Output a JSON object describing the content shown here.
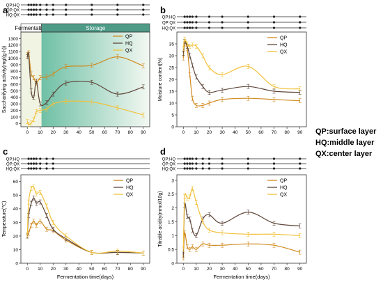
{
  "figure_note": {
    "lines": [
      "QP:surface layer",
      "HQ:middle layer",
      "QX:center layer"
    ]
  },
  "chart_data": [
    {
      "panel": "a",
      "type": "line",
      "sig_rows": [
        "QP:HQ",
        "QP:QX",
        "HQ:QX"
      ],
      "sig_marks_x": [
        [
          1,
          3,
          5,
          7,
          10,
          15,
          20,
          30,
          50,
          70,
          90
        ],
        [
          1,
          3,
          5,
          7,
          10,
          15,
          20,
          30,
          50,
          70,
          90
        ],
        [
          1,
          3,
          5,
          7,
          10,
          15,
          20,
          30,
          50,
          70,
          90
        ]
      ],
      "phases": [
        {
          "label": "Fermentation",
          "x0": -5,
          "x1": 11,
          "color": "#f1f4e2"
        },
        {
          "label": "Storage",
          "x0": 11,
          "x1": 95,
          "color": "#6fc0a6"
        }
      ],
      "ylabel": "Saccharifying activity(mg/(g·h))",
      "xlabel": "",
      "xlim": [
        -5,
        95
      ],
      "ylim": [
        -50,
        1400
      ],
      "xticks": [
        0,
        10,
        20,
        30,
        40,
        50,
        60,
        70,
        80,
        90
      ],
      "yticks": [
        0,
        100,
        200,
        300,
        400,
        500,
        600,
        700,
        800,
        900,
        1000,
        1100,
        1200,
        1300
      ],
      "legend_position": "top-right",
      "series": [
        {
          "name": "QP",
          "color": "#d08a1f",
          "x": [
            0,
            1,
            3,
            5,
            7,
            10,
            15,
            20,
            30,
            50,
            70,
            90
          ],
          "y": [
            1050,
            1080,
            760,
            700,
            620,
            700,
            710,
            760,
            870,
            890,
            1020,
            880
          ]
        },
        {
          "name": "HQ",
          "color": "#5e463a",
          "x": [
            0,
            1,
            3,
            5,
            7,
            10,
            15,
            20,
            30,
            50,
            70,
            90
          ],
          "y": [
            1020,
            1050,
            500,
            400,
            650,
            300,
            320,
            450,
            620,
            630,
            450,
            560
          ]
        },
        {
          "name": "QX",
          "color": "#f2c13a",
          "x": [
            0,
            1,
            3,
            5,
            7,
            10,
            15,
            20,
            30,
            50,
            70,
            90
          ],
          "y": [
            30,
            -20,
            10,
            60,
            180,
            200,
            220,
            300,
            340,
            330,
            240,
            130
          ]
        }
      ]
    },
    {
      "panel": "b",
      "type": "line",
      "sig_rows": [
        "QP:HQ",
        "QP:QX",
        "HQ:QX"
      ],
      "sig_marks_x": [
        [
          1,
          3,
          5,
          7,
          10,
          20,
          30,
          50,
          70,
          90
        ],
        [
          1,
          3,
          5,
          7,
          10,
          20,
          30,
          50,
          70,
          90
        ],
        [
          1,
          3,
          5,
          7,
          10,
          20,
          30,
          50,
          70,
          90
        ]
      ],
      "ylabel": "Moisture content(%)",
      "xlabel": "",
      "xlim": [
        -5,
        95
      ],
      "ylim": [
        0,
        40
      ],
      "xticks": [
        0,
        10,
        20,
        30,
        40,
        50,
        60,
        70,
        80,
        90
      ],
      "yticks": [
        0,
        5,
        10,
        15,
        20,
        25,
        30,
        35
      ],
      "legend_position": "top-right",
      "series": [
        {
          "name": "QP",
          "color": "#d08a1f",
          "x": [
            0,
            1,
            3,
            5,
            7,
            10,
            15,
            20,
            30,
            50,
            70,
            90
          ],
          "y": [
            29,
            35,
            33,
            22,
            12,
            9,
            9,
            10,
            11.5,
            12,
            11.5,
            11
          ]
        },
        {
          "name": "HQ",
          "color": "#5e463a",
          "x": [
            0,
            1,
            3,
            5,
            7,
            10,
            15,
            20,
            30,
            50,
            70,
            90
          ],
          "y": [
            31,
            36,
            34,
            30,
            26,
            21,
            17,
            14.5,
            15.5,
            17,
            15,
            14.5
          ]
        },
        {
          "name": "QX",
          "color": "#f2c13a",
          "x": [
            0,
            1,
            3,
            5,
            7,
            10,
            15,
            20,
            30,
            50,
            70,
            90
          ],
          "y": [
            33,
            37,
            35,
            34,
            34.5,
            34,
            30,
            25,
            22,
            25.5,
            17,
            16
          ]
        }
      ]
    },
    {
      "panel": "c",
      "type": "line",
      "sig_rows": [
        "QP:HQ",
        "QP:QX",
        "HQ:QX"
      ],
      "sig_marks_x": [
        [
          1,
          3,
          5,
          7,
          10,
          15,
          20
        ],
        [
          1,
          3,
          5,
          7,
          10,
          15,
          20
        ],
        [
          1,
          3,
          5,
          7,
          10,
          15,
          20
        ]
      ],
      "ylabel": "Temperature(℃)",
      "xlabel": "Fermentation time(days)",
      "xlim": [
        -5,
        95
      ],
      "ylim": [
        0,
        65
      ],
      "xticks": [
        0,
        10,
        20,
        30,
        40,
        50,
        60,
        70,
        80,
        90
      ],
      "yticks": [
        0,
        10,
        20,
        30,
        40,
        50,
        60
      ],
      "legend_position": "top-right",
      "series": [
        {
          "name": "QP",
          "color": "#d08a1f",
          "x": [
            0,
            1,
            3,
            5,
            7,
            10,
            15,
            20,
            30,
            50,
            70,
            90
          ],
          "y": [
            20,
            22,
            28,
            31,
            28,
            31,
            25,
            24,
            17,
            8,
            8,
            7.5
          ]
        },
        {
          "name": "HQ",
          "color": "#5e463a",
          "x": [
            0,
            1,
            3,
            5,
            7,
            10,
            15,
            20,
            30,
            50,
            70,
            90
          ],
          "y": [
            20,
            35,
            44,
            48,
            44,
            45,
            35,
            25,
            18,
            8,
            8,
            7.5
          ]
        },
        {
          "name": "QX",
          "color": "#f2c13a",
          "x": [
            0,
            1,
            3,
            5,
            7,
            10,
            15,
            20,
            30,
            50,
            70,
            90
          ],
          "y": [
            21,
            45,
            55,
            56,
            51,
            52,
            42,
            30,
            20,
            8,
            9,
            7.5
          ]
        }
      ]
    },
    {
      "panel": "d",
      "type": "line",
      "sig_rows": [
        "QP:HQ",
        "QP:QX",
        "HQ:QX"
      ],
      "sig_marks_x": [
        [
          1,
          3,
          5,
          7,
          10,
          15,
          20,
          30,
          50,
          70,
          90
        ],
        [
          1,
          3,
          5,
          7,
          10,
          15,
          20,
          30,
          50,
          70,
          90
        ],
        [
          1,
          3,
          5,
          7,
          10,
          15,
          20,
          30,
          50,
          70,
          90
        ]
      ],
      "ylabel": "Titrable acidity(mmol/10g)",
      "xlabel": "Fermentation time(days)",
      "xlim": [
        -5,
        95
      ],
      "ylim": [
        0,
        3.2
      ],
      "xticks": [
        0,
        10,
        20,
        30,
        40,
        50,
        60,
        70,
        80,
        90
      ],
      "yticks": [
        0.0,
        0.5,
        1.0,
        1.5,
        2.0,
        2.5,
        3.0
      ],
      "legend_position": "top-right",
      "series": [
        {
          "name": "QP",
          "color": "#d08a1f",
          "x": [
            0,
            1,
            3,
            5,
            7,
            10,
            15,
            20,
            30,
            50,
            70,
            90
          ],
          "y": [
            0.2,
            1.1,
            0.6,
            0.5,
            0.6,
            0.5,
            0.7,
            0.65,
            0.65,
            0.7,
            0.65,
            0.4
          ]
        },
        {
          "name": "HQ",
          "color": "#5e463a",
          "x": [
            0,
            1,
            3,
            5,
            7,
            10,
            15,
            20,
            30,
            50,
            70,
            90
          ],
          "y": [
            0.3,
            2.1,
            1.7,
            1.6,
            1.2,
            1.0,
            1.6,
            1.75,
            1.45,
            1.85,
            1.45,
            1.35
          ]
        },
        {
          "name": "QX",
          "color": "#f2c13a",
          "x": [
            0,
            1,
            3,
            5,
            7,
            10,
            15,
            20,
            30,
            50,
            70,
            90
          ],
          "y": [
            0.5,
            2.4,
            2.35,
            2.4,
            2.7,
            2.2,
            1.5,
            1.2,
            1.1,
            1.05,
            1.05,
            1.0
          ]
        }
      ]
    }
  ]
}
